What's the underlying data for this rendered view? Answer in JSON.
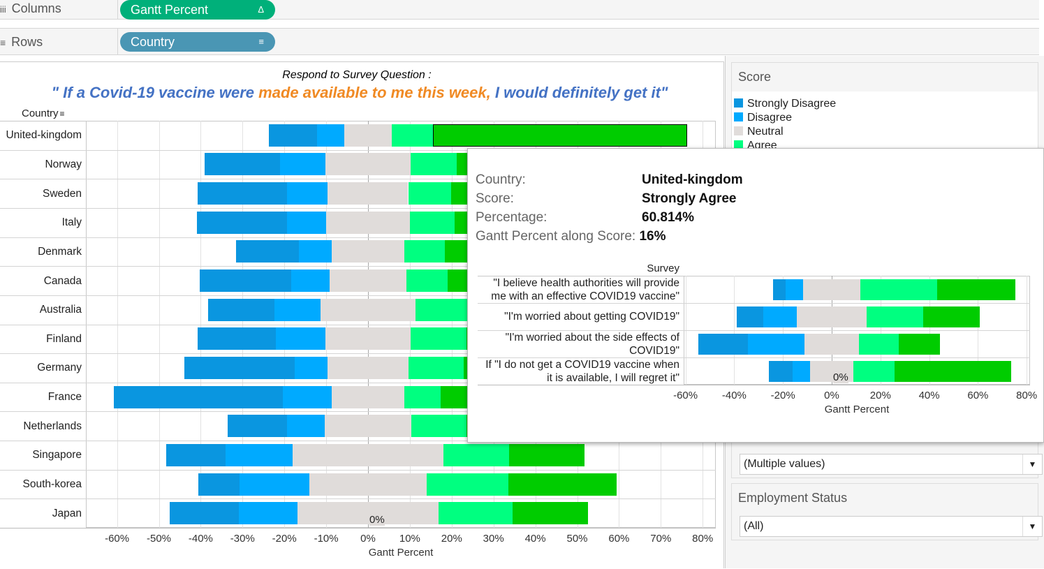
{
  "shelves": {
    "columns": {
      "label": "Columns",
      "icon": "columns-icon",
      "pill": "Gantt Percent",
      "pill_icon": "delta-icon",
      "color": "#00b07a"
    },
    "rows": {
      "label": "Rows",
      "icon": "rows-icon",
      "pill": "Country",
      "pill_icon": "sort-icon",
      "color": "#4a96b4"
    }
  },
  "title": {
    "line1": "Respond to Survey Question :",
    "line2_a": "\" If a Covid-19 vaccine were ",
    "line2_b": "made available to me this week,",
    "line2_c": " I would definitely get it\"",
    "blue": "#4472c4",
    "orange": "#f08a24"
  },
  "colors": {
    "Strongly Disagree": "#0a96e0",
    "Disagree": "#00aaff",
    "Neutral": "#e0dcda",
    "Agree": "#00ff80",
    "Strongly Agree": "#00cc00"
  },
  "chart_data": [
    {
      "type": "bar",
      "stacked": "diverging",
      "row_header": "Country",
      "xlabel": "Gantt Percent",
      "xlim": [
        -60,
        80
      ],
      "xticks": [
        "-60%",
        "-50%",
        "-40%",
        "-30%",
        "-20%",
        "-10%",
        "0%",
        "10%",
        "20%",
        "30%",
        "40%",
        "50%",
        "60%",
        "70%",
        "80%"
      ],
      "zero_label": "0%",
      "segments": [
        "Strongly Disagree",
        "Disagree",
        "Neutral",
        "Agree",
        "Strongly Agree"
      ],
      "categories": [
        "United-kingdom",
        "Norway",
        "Sweden",
        "Italy",
        "Denmark",
        "Canada",
        "Australia",
        "Finland",
        "Germany",
        "France",
        "Netherlands",
        "Singapore",
        "South-korea",
        "Japan"
      ],
      "values": [
        [
          11.5,
          6.4,
          11.5,
          9.7,
          60.8
        ],
        [
          18.1,
          10.8,
          20.4,
          11.0,
          30
        ],
        [
          21.5,
          9.7,
          19.2,
          10.2,
          32
        ],
        [
          21.5,
          9.4,
          20.0,
          10.7,
          31
        ],
        [
          14.9,
          8.0,
          17.2,
          9.7,
          38
        ],
        [
          21.8,
          9.2,
          18.4,
          9.8,
          33
        ],
        [
          16.0,
          11.0,
          22.6,
          14,
          30
        ],
        [
          18.7,
          11.8,
          20.4,
          13.3,
          30
        ],
        [
          26.4,
          7.7,
          19.5,
          13.2,
          29
        ],
        [
          40.4,
          11.7,
          17.4,
          8.7,
          40
        ],
        [
          14.1,
          9.1,
          20.6,
          13.3,
          32
        ],
        [
          14.3,
          15.9,
          36.2,
          15.6,
          18.0
        ],
        [
          9.9,
          16.7,
          28.0,
          19.6,
          25.8
        ],
        [
          16.5,
          14.0,
          33.8,
          17.7,
          18.0
        ]
      ],
      "highlighted": {
        "category": "United-kingdom",
        "segment": "Strongly Agree"
      }
    },
    {
      "type": "bar",
      "stacked": "diverging",
      "row_header": "Survey",
      "xlabel": "Gantt Percent",
      "xlim": [
        -60,
        80
      ],
      "xticks": [
        "-60%",
        "-40%",
        "-20%",
        "0%",
        "20%",
        "40%",
        "60%",
        "80%"
      ],
      "zero_label": "0%",
      "segments": [
        "Strongly Disagree",
        "Disagree",
        "Neutral",
        "Agree",
        "Strongly Agree"
      ],
      "categories": [
        "\"I believe health authorities will provide me with an effective COVID19 vaccine\"",
        "\"I'm worried about getting COVID19\"",
        "\"I'm worried about the side effects of COVID19\"",
        "If \"I do not get a COVID19 vaccine when it is available, I will regret it\""
      ],
      "values": [
        [
          5.2,
          7.2,
          23.4,
          31.6,
          32.1
        ],
        [
          10.9,
          13.8,
          28.6,
          23.2,
          23.2
        ],
        [
          20.6,
          23.2,
          22.1,
          16.6,
          16.9
        ],
        [
          9.7,
          7.2,
          17.5,
          16.9,
          48.1
        ]
      ]
    }
  ],
  "tooltip": {
    "fields": [
      {
        "key": "Country:",
        "value": "United-kingdom"
      },
      {
        "key": "Score:",
        "value": "Strongly Agree"
      },
      {
        "key": "Percentage:",
        "value": "60.814%"
      },
      {
        "key": "Gantt Percent along Score:",
        "value": "16%"
      }
    ]
  },
  "legend": {
    "title": "Score",
    "items": [
      "Strongly Disagree",
      "Disagree",
      "Neutral",
      "Agree"
    ]
  },
  "filters": [
    {
      "title": "",
      "value": "(Multiple values)"
    },
    {
      "title": "Employment Status",
      "value": "(All)"
    }
  ]
}
